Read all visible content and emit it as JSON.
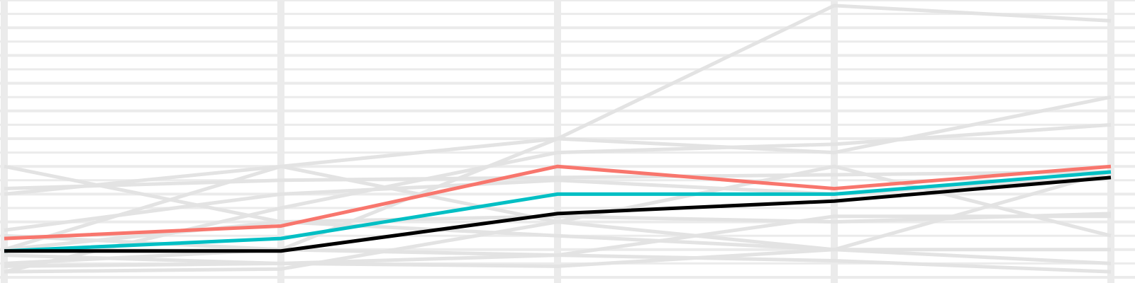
{
  "chart_data": {
    "type": "line",
    "title": "",
    "xlabel": "",
    "ylabel": "",
    "x": [
      1,
      2,
      3,
      4,
      5
    ],
    "xlim": [
      1,
      5
    ],
    "ylim": [
      0,
      10
    ],
    "grid": true,
    "background_series": [
      [
        1.0,
        4.0,
        5.0,
        9.8,
        9.25
      ],
      [
        4.0,
        2.0,
        1.5,
        1.0,
        1.0
      ],
      [
        3.0,
        4.0,
        2.0,
        1.0,
        0.5
      ],
      [
        0.5,
        1.0,
        5.0,
        4.5,
        6.5
      ],
      [
        0.2,
        2.5,
        4.5,
        4.8,
        5.5
      ],
      [
        1.5,
        1.0,
        0.8,
        0.6,
        0.2
      ],
      [
        3.2,
        3.5,
        3.6,
        3.7,
        3.8
      ],
      [
        1.0,
        2.0,
        2.2,
        2.0,
        2.3
      ],
      [
        0.4,
        0.5,
        0.8,
        2.2,
        2.2
      ],
      [
        0.8,
        0.5,
        0.4,
        1.0,
        3.8
      ],
      [
        1.7,
        3.0,
        3.5,
        3.0,
        3.6
      ],
      [
        0.2,
        0.3,
        2.0,
        4.0,
        1.5
      ]
    ],
    "background_color": "#e3e3e3",
    "series": [
      {
        "color": "#f8766d",
        "values": [
          1.4,
          1.85,
          4.0,
          3.2,
          4.0
        ]
      },
      {
        "color": "#00bfc4",
        "values": [
          0.95,
          1.4,
          3.0,
          3.0,
          3.8
        ]
      },
      {
        "color": "#000000",
        "values": [
          0.95,
          0.95,
          2.3,
          2.75,
          3.6
        ]
      }
    ]
  }
}
